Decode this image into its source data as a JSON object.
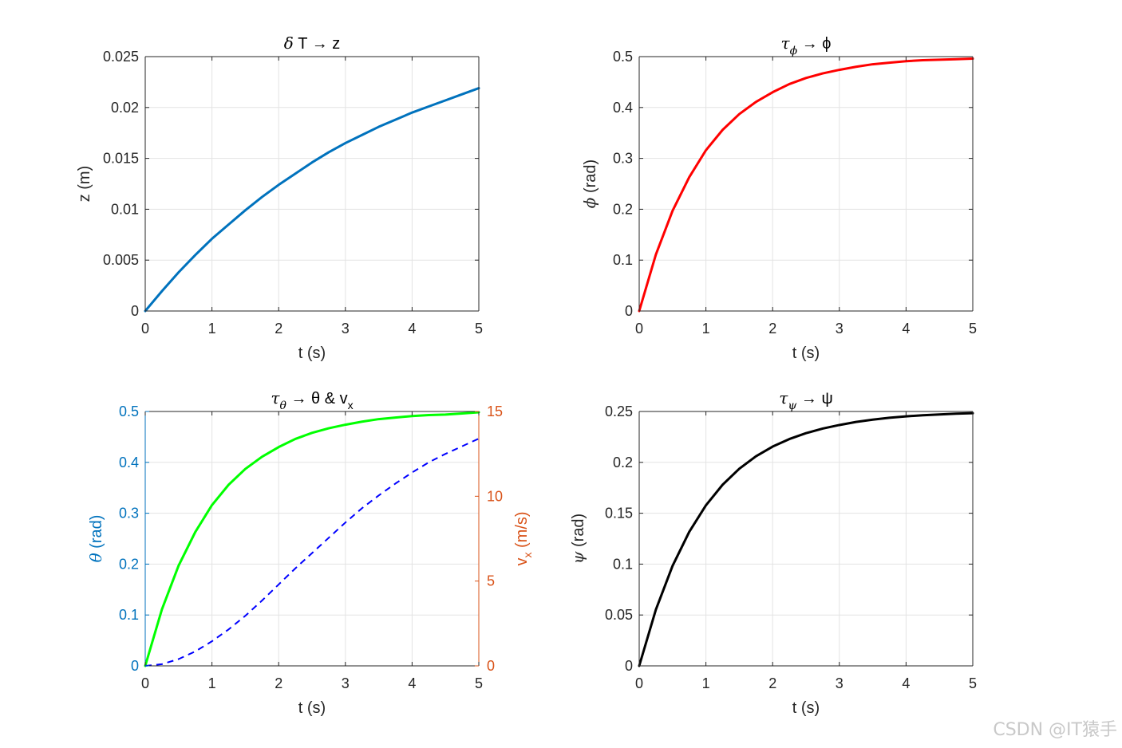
{
  "colors": {
    "z_line": "#0072BD",
    "phi_line": "#FF0000",
    "theta_line": "#00FF00",
    "vx_line": "#0000FF",
    "psi_line": "#000000",
    "left_axis_blue": "#0072BD",
    "right_axis_orange": "#D95319",
    "grid": "#e3e3e3",
    "axes": "#262626"
  },
  "watermark": "CSDN @IT猿手",
  "chart_data": [
    {
      "type": "line",
      "title": {
        "pre": "δ",
        "rest": " T → z"
      },
      "xlabel": "t (s)",
      "ylabel": {
        "sym": "",
        "rest": "z (m)"
      },
      "xlim": [
        0,
        5
      ],
      "ylim": [
        0,
        0.025
      ],
      "xticks": [
        0,
        1,
        2,
        3,
        4,
        5
      ],
      "xtick_labels": [
        "0",
        "1",
        "2",
        "3",
        "4",
        "5"
      ],
      "yticks": [
        0,
        0.005,
        0.01,
        0.015,
        0.02,
        0.025
      ],
      "ytick_labels": [
        "0",
        "0.005",
        "0.01",
        "0.015",
        "0.02",
        "0.025"
      ],
      "grid": true,
      "series": [
        {
          "color_key": "z_line",
          "dashed": false,
          "x": [
            0,
            0.25,
            0.5,
            0.75,
            1,
            1.25,
            1.5,
            1.75,
            2,
            2.25,
            2.5,
            2.75,
            3,
            3.25,
            3.5,
            3.75,
            4,
            4.25,
            4.5,
            4.75,
            5
          ],
          "y": [
            0,
            0.00195,
            0.0038,
            0.0055,
            0.0071,
            0.0085,
            0.0099,
            0.0112,
            0.0124,
            0.0135,
            0.0146,
            0.0156,
            0.0165,
            0.0173,
            0.0181,
            0.0188,
            0.0195,
            0.0201,
            0.0207,
            0.0213,
            0.0219
          ]
        }
      ]
    },
    {
      "type": "line",
      "title": {
        "pre": "τ",
        "sub": "ϕ",
        "rest": " → ϕ"
      },
      "xlabel": "t (s)",
      "ylabel": {
        "sym": "ϕ",
        "rest": " (rad)"
      },
      "xlim": [
        0,
        5
      ],
      "ylim": [
        0,
        0.5
      ],
      "xticks": [
        0,
        1,
        2,
        3,
        4,
        5
      ],
      "xtick_labels": [
        "0",
        "1",
        "2",
        "3",
        "4",
        "5"
      ],
      "yticks": [
        0,
        0.1,
        0.2,
        0.3,
        0.4,
        0.5
      ],
      "ytick_labels": [
        "0",
        "0.1",
        "0.2",
        "0.3",
        "0.4",
        "0.5"
      ],
      "grid": true,
      "series": [
        {
          "color_key": "phi_line",
          "dashed": false,
          "x": [
            0,
            0.25,
            0.5,
            0.75,
            1,
            1.25,
            1.5,
            1.75,
            2,
            2.25,
            2.5,
            2.75,
            3,
            3.25,
            3.5,
            3.75,
            4,
            4.25,
            4.5,
            4.75,
            5
          ],
          "y": [
            0,
            0.111,
            0.197,
            0.263,
            0.316,
            0.356,
            0.387,
            0.411,
            0.43,
            0.446,
            0.458,
            0.467,
            0.474,
            0.48,
            0.485,
            0.488,
            0.491,
            0.493,
            0.494,
            0.495,
            0.496
          ]
        }
      ]
    },
    {
      "type": "line",
      "title": {
        "pre": "τ",
        "sub": "θ",
        "rest": " → θ & v",
        "rest_sub": "x"
      },
      "xlabel": "t (s)",
      "ylabel": {
        "sym": "θ",
        "rest": " (rad)"
      },
      "ylabel_right": {
        "main": "v",
        "sub": "x",
        "rest": " (m/s)"
      },
      "xlim": [
        0,
        5
      ],
      "ylim": [
        0,
        0.5
      ],
      "ylim_right": [
        0,
        15
      ],
      "xticks": [
        0,
        1,
        2,
        3,
        4,
        5
      ],
      "xtick_labels": [
        "0",
        "1",
        "2",
        "3",
        "4",
        "5"
      ],
      "yticks": [
        0,
        0.1,
        0.2,
        0.3,
        0.4,
        0.5
      ],
      "ytick_labels": [
        "0",
        "0.1",
        "0.2",
        "0.3",
        "0.4",
        "0.5"
      ],
      "yticks_right": [
        0,
        5,
        10,
        15
      ],
      "ytick_labels_right": [
        "0",
        "5",
        "10",
        "15"
      ],
      "grid": true,
      "series": [
        {
          "color_key": "theta_line",
          "dashed": false,
          "axis": "left",
          "x": [
            0,
            0.25,
            0.5,
            0.75,
            1,
            1.25,
            1.5,
            1.75,
            2,
            2.25,
            2.5,
            2.75,
            3,
            3.25,
            3.5,
            3.75,
            4,
            4.25,
            4.5,
            4.75,
            5
          ],
          "y": [
            0,
            0.111,
            0.197,
            0.263,
            0.316,
            0.356,
            0.387,
            0.411,
            0.43,
            0.446,
            0.458,
            0.467,
            0.474,
            0.48,
            0.485,
            0.488,
            0.491,
            0.493,
            0.494,
            0.496,
            0.4985
          ]
        },
        {
          "color_key": "vx_line",
          "dashed": true,
          "axis": "right",
          "x": [
            0,
            0.25,
            0.5,
            0.75,
            1,
            1.25,
            1.5,
            1.75,
            2,
            2.25,
            2.5,
            2.75,
            3,
            3.25,
            3.5,
            3.75,
            4,
            4.25,
            4.5,
            4.75,
            5
          ],
          "y": [
            0,
            0.1,
            0.4,
            0.85,
            1.45,
            2.15,
            2.95,
            3.85,
            4.8,
            5.75,
            6.65,
            7.55,
            8.45,
            9.3,
            10.05,
            10.75,
            11.4,
            12.0,
            12.5,
            12.95,
            13.4
          ]
        }
      ]
    },
    {
      "type": "line",
      "title": {
        "pre": "τ",
        "sub": "ψ",
        "rest": " → ψ"
      },
      "xlabel": "t (s)",
      "ylabel": {
        "sym": "ψ",
        "rest": " (rad)"
      },
      "xlim": [
        0,
        5
      ],
      "ylim": [
        0,
        0.25
      ],
      "xticks": [
        0,
        1,
        2,
        3,
        4,
        5
      ],
      "xtick_labels": [
        "0",
        "1",
        "2",
        "3",
        "4",
        "5"
      ],
      "yticks": [
        0,
        0.05,
        0.1,
        0.15,
        0.2,
        0.25
      ],
      "ytick_labels": [
        "0",
        "0.05",
        "0.1",
        "0.15",
        "0.2",
        "0.25"
      ],
      "grid": true,
      "series": [
        {
          "color_key": "psi_line",
          "dashed": false,
          "x": [
            0,
            0.25,
            0.5,
            0.75,
            1,
            1.25,
            1.5,
            1.75,
            2,
            2.25,
            2.5,
            2.75,
            3,
            3.25,
            3.5,
            3.75,
            4,
            4.25,
            4.5,
            4.75,
            5
          ],
          "y": [
            0,
            0.0553,
            0.0983,
            0.1317,
            0.1578,
            0.178,
            0.1937,
            0.206,
            0.2155,
            0.2229,
            0.2287,
            0.2332,
            0.2367,
            0.2397,
            0.242,
            0.2438,
            0.2452,
            0.2463,
            0.2471,
            0.2478,
            0.2483
          ]
        }
      ]
    }
  ]
}
